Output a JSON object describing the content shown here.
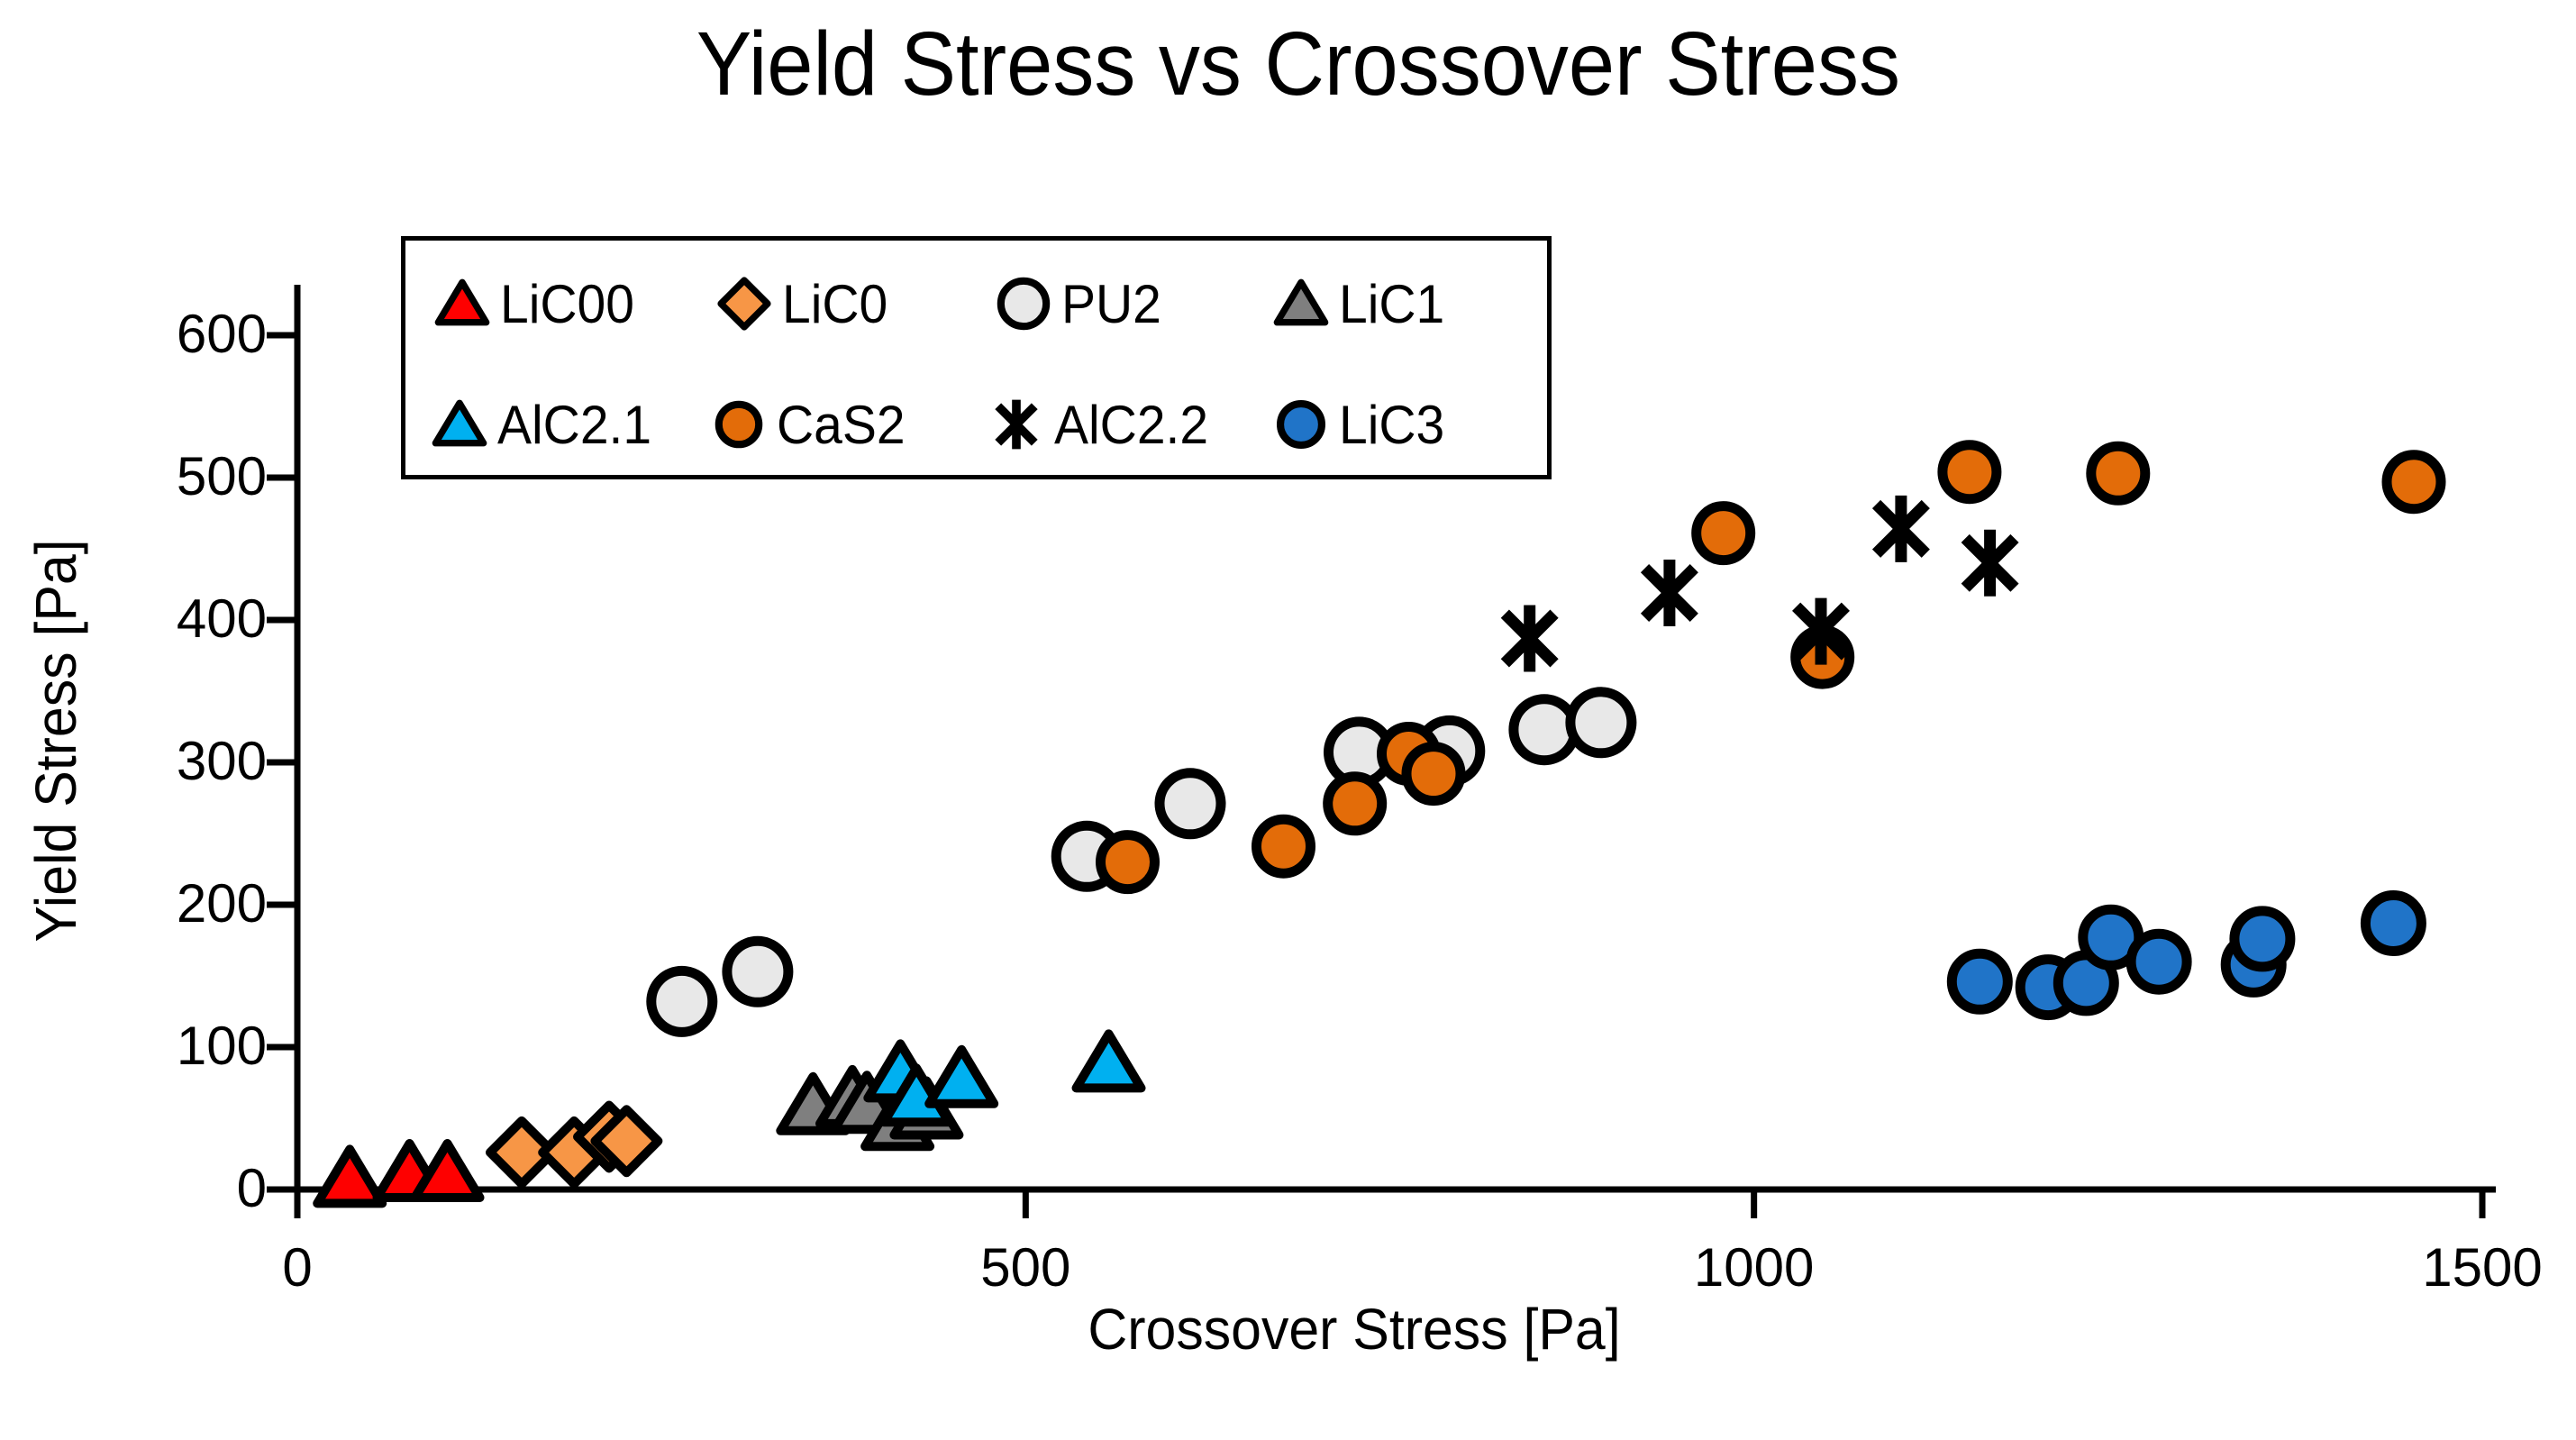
{
  "chart_data": {
    "type": "scatter",
    "title": "Yield Stress vs Crossover Stress",
    "xlabel": "Crossover Stress [Pa]",
    "ylabel": "Yield Stress [Pa]",
    "xlim": [
      0,
      1500
    ],
    "ylim": [
      0,
      600
    ],
    "x_ticks": [
      0,
      500,
      1000,
      1500
    ],
    "y_ticks": [
      0,
      100,
      200,
      300,
      400,
      500,
      600
    ],
    "grid": false,
    "legend_position": "top-left-inside",
    "legend_rows": [
      [
        "LiC00",
        "LiC0",
        "PU2",
        "LiC1"
      ],
      [
        "AlC2.1",
        "CaS2",
        "AlC2.2",
        "LiC3"
      ]
    ],
    "series": [
      {
        "name": "LiC00",
        "marker": "triangle",
        "color": "#FE0000",
        "points": [
          [
            36,
            8
          ],
          [
            77,
            12
          ],
          [
            103,
            12
          ]
        ]
      },
      {
        "name": "LiC0",
        "marker": "diamond",
        "color": "#F79646",
        "points": [
          [
            154,
            26
          ],
          [
            190,
            26
          ],
          [
            214,
            37
          ],
          [
            226,
            34
          ]
        ]
      },
      {
        "name": "PU2",
        "marker": "circle",
        "color": "#E8E8E8",
        "points": [
          [
            264,
            132
          ],
          [
            316,
            153
          ],
          [
            542,
            234
          ],
          [
            613,
            271
          ],
          [
            729,
            307
          ],
          [
            791,
            308
          ],
          [
            856,
            323
          ],
          [
            895,
            328
          ]
        ]
      },
      {
        "name": "LiC1",
        "marker": "triangle",
        "color": "#7F7F7F",
        "points": [
          [
            354,
            59
          ],
          [
            381,
            64
          ],
          [
            391,
            60
          ],
          [
            412,
            48
          ],
          [
            432,
            56
          ]
        ]
      },
      {
        "name": "AlC2.1",
        "marker": "triangle",
        "color": "#00B0F0",
        "points": [
          [
            414,
            82
          ],
          [
            425,
            65
          ],
          [
            456,
            78
          ],
          [
            557,
            89
          ]
        ]
      },
      {
        "name": "CaS2",
        "marker": "circle",
        "color": "#E36C09",
        "points": [
          [
            570,
            230
          ],
          [
            677,
            241
          ],
          [
            726,
            271
          ],
          [
            763,
            306
          ],
          [
            780,
            292
          ],
          [
            979,
            461
          ],
          [
            1047,
            374
          ],
          [
            1148,
            504
          ],
          [
            1250,
            503
          ],
          [
            1453,
            497
          ]
        ]
      },
      {
        "name": "AlC2.2",
        "marker": "asterisk",
        "color": "#000000",
        "points": [
          [
            846,
            387
          ],
          [
            942,
            419
          ],
          [
            1046,
            392
          ],
          [
            1101,
            464
          ],
          [
            1162,
            440
          ]
        ]
      },
      {
        "name": "LiC3",
        "marker": "circle",
        "color": "#2074C8",
        "points": [
          [
            1155,
            146
          ],
          [
            1202,
            142
          ],
          [
            1228,
            145
          ],
          [
            1245,
            177
          ],
          [
            1278,
            160
          ],
          [
            1343,
            158
          ],
          [
            1349,
            176
          ],
          [
            1439,
            187
          ]
        ]
      }
    ]
  }
}
